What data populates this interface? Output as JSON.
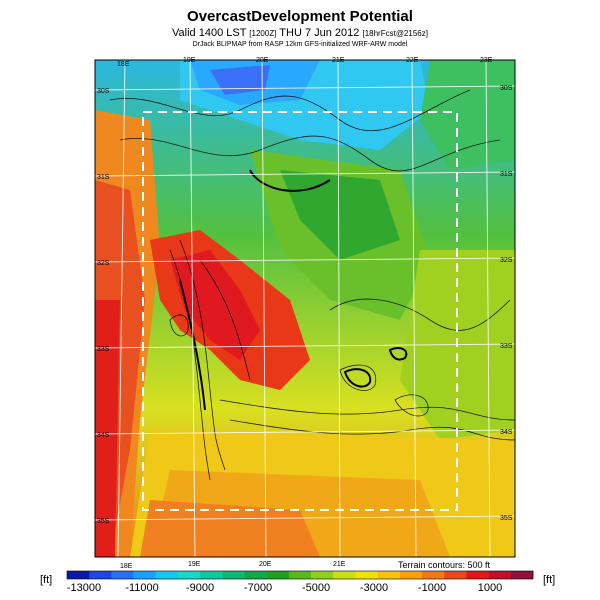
{
  "title": "OvercastDevelopment Potential",
  "subtitle": "Valid 1400 LST",
  "subtitle_code": "[1200Z]",
  "subtitle_date": "THU 7 Jun 2012",
  "subtitle_meta": "[18hrFcst@2156z]",
  "subtitle_line2": "DrJack BLIPMAP from RASP 12km GFS-initialized WRF-ARW model",
  "lon_labels_top": [
    "18E",
    "19E",
    "20E",
    "21E",
    "22E",
    "23E"
  ],
  "lon_labels_bottom": [
    "18E",
    "19E",
    "20E",
    "21E"
  ],
  "lat_labels_left": [
    "30S",
    "31S",
    "32S",
    "33S",
    "34S",
    "35S"
  ],
  "lat_labels_right": [
    "30S",
    "31S",
    "32S",
    "33S",
    "34S",
    "35S"
  ],
  "unit_left": "[ft]",
  "unit_right": "[ft]",
  "terrain_note": "Terrain contours: 500 ft",
  "colorbar": {
    "ticks": [
      "-13000",
      "-11000",
      "-9000",
      "-7000",
      "-5000",
      "-3000",
      "-1000",
      "1000"
    ],
    "colors": [
      "#0a1aa8",
      "#1e46e0",
      "#2a6ef6",
      "#1aa0ff",
      "#18c6f0",
      "#1ad8c8",
      "#10c8a0",
      "#10b870",
      "#12a848",
      "#20a020",
      "#5ab81c",
      "#90d01c",
      "#c8e018",
      "#f0e010",
      "#f8c010",
      "#f8a010",
      "#f07818",
      "#e84820",
      "#e01818",
      "#c0102a",
      "#901040"
    ]
  }
}
